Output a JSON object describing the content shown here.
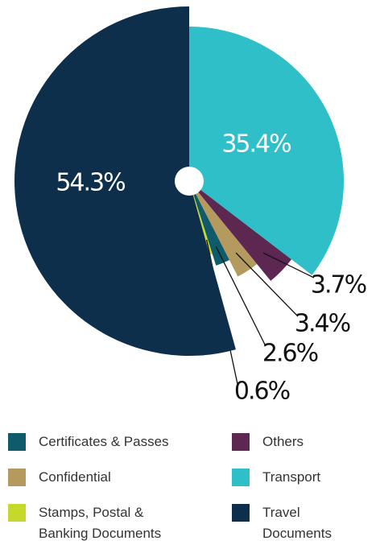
{
  "chart_data": {
    "type": "pie",
    "categories": [
      "Transport",
      "Others",
      "Confidential",
      "Certificates & Passes",
      "Stamps, Postal & Banking Documents",
      "Travel Documents"
    ],
    "values": [
      35.4,
      3.7,
      3.4,
      2.6,
      0.6,
      54.3
    ],
    "value_labels": [
      "35.4%",
      "3.7%",
      "3.4%",
      "2.6%",
      "0.6%",
      "54.3%"
    ],
    "colors": [
      "#2ebfc9",
      "#5c2750",
      "#b59a5f",
      "#0f5a6b",
      "#c5d92d",
      "#0d2f4b"
    ]
  }
}
